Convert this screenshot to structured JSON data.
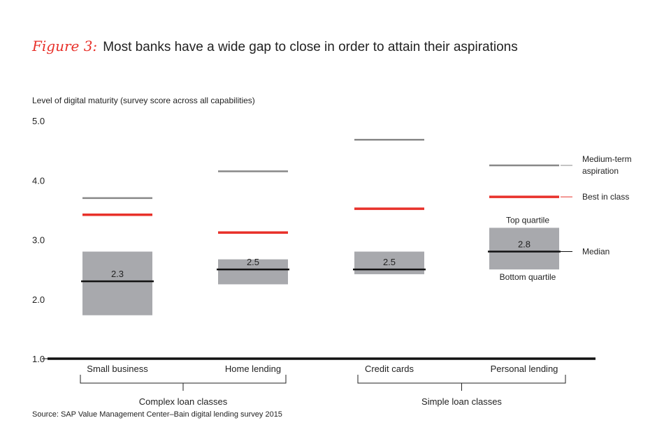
{
  "figure": {
    "label": "Figure 3:",
    "title": "Most banks have a wide gap to close in order to attain their aspirations",
    "source": "Source: SAP Value Management Center–Bain digital lending survey 2015"
  },
  "colors": {
    "aspiration": "#888888",
    "best": "#e8312a",
    "box": "#a8a9ad",
    "median": "#111111",
    "axis": "#111111"
  },
  "chart_data": {
    "type": "box-range",
    "title": "Most banks have a wide gap to close in order to attain their aspirations",
    "ylabel": "Level of digital maturity (survey score across all capabilities)",
    "ylim": [
      1.0,
      5.0
    ],
    "yticks": [
      "1.0",
      "2.0",
      "3.0",
      "4.0",
      "5.0"
    ],
    "categories": [
      "Small business",
      "Home lending",
      "Credit cards",
      "Personal lending"
    ],
    "series": [
      {
        "name": "Medium-term aspiration",
        "values": [
          3.7,
          4.15,
          4.68,
          4.25
        ]
      },
      {
        "name": "Best in class",
        "values": [
          3.42,
          3.12,
          3.52,
          3.72
        ]
      },
      {
        "name": "Top quartile",
        "values": [
          2.8,
          2.67,
          2.8,
          3.2
        ]
      },
      {
        "name": "Bottom quartile",
        "values": [
          1.73,
          2.25,
          2.42,
          2.5
        ]
      },
      {
        "name": "Median",
        "values": [
          2.3,
          2.5,
          2.5,
          2.8
        ]
      }
    ],
    "median_labels": [
      "2.3",
      "2.5",
      "2.5",
      "2.8"
    ],
    "legend": [
      "Medium-term aspiration",
      "Best in class",
      "Top quartile",
      "Median",
      "Bottom quartile"
    ],
    "groups": [
      {
        "label": "Complex loan classes",
        "members": [
          0,
          1
        ]
      },
      {
        "label": "Simple loan classes",
        "members": [
          2,
          3
        ]
      }
    ]
  }
}
